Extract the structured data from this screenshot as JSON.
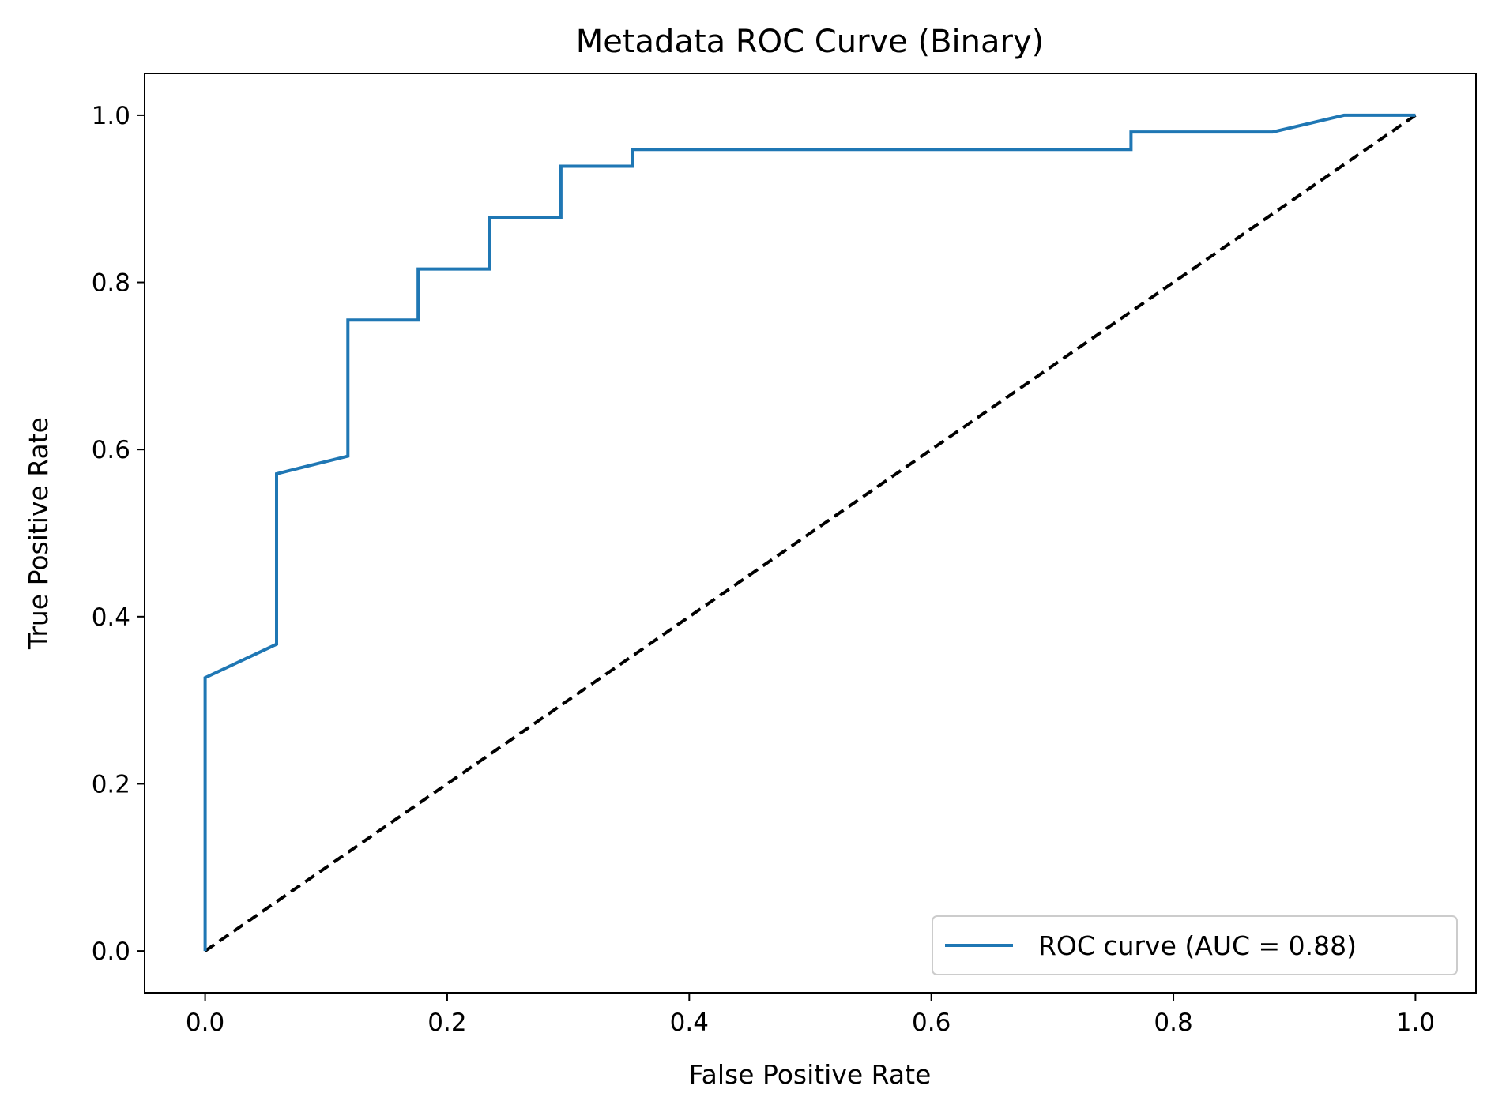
{
  "chart_data": {
    "type": "line",
    "title": "Metadata ROC Curve (Binary)",
    "xlabel": "False Positive Rate",
    "ylabel": "True Positive Rate",
    "xlim": [
      -0.05,
      1.05
    ],
    "ylim": [
      -0.05,
      1.05
    ],
    "xticks": [
      0.0,
      0.2,
      0.4,
      0.6,
      0.8,
      1.0
    ],
    "yticks": [
      0.0,
      0.2,
      0.4,
      0.6,
      0.8,
      1.0
    ],
    "xtick_labels": [
      "0.0",
      "0.2",
      "0.4",
      "0.6",
      "0.8",
      "1.0"
    ],
    "ytick_labels": [
      "0.0",
      "0.2",
      "0.4",
      "0.6",
      "0.8",
      "1.0"
    ],
    "grid": false,
    "legend_position": "lower-right",
    "series": [
      {
        "name": "ROC curve (AUC = 0.88)",
        "color": "#1f77b4",
        "style": "solid",
        "x": [
          0.0,
          0.0,
          0.059,
          0.059,
          0.118,
          0.118,
          0.176,
          0.176,
          0.235,
          0.235,
          0.294,
          0.294,
          0.353,
          0.353,
          0.765,
          0.765,
          0.882,
          0.941,
          1.0
        ],
        "y": [
          0.0,
          0.327,
          0.367,
          0.571,
          0.592,
          0.755,
          0.755,
          0.816,
          0.816,
          0.878,
          0.878,
          0.939,
          0.939,
          0.959,
          0.959,
          0.98,
          0.98,
          1.0,
          1.0
        ]
      }
    ],
    "reference_line": {
      "color": "#000000",
      "style": "dashed",
      "x": [
        0.0,
        1.0
      ],
      "y": [
        0.0,
        1.0
      ]
    }
  }
}
